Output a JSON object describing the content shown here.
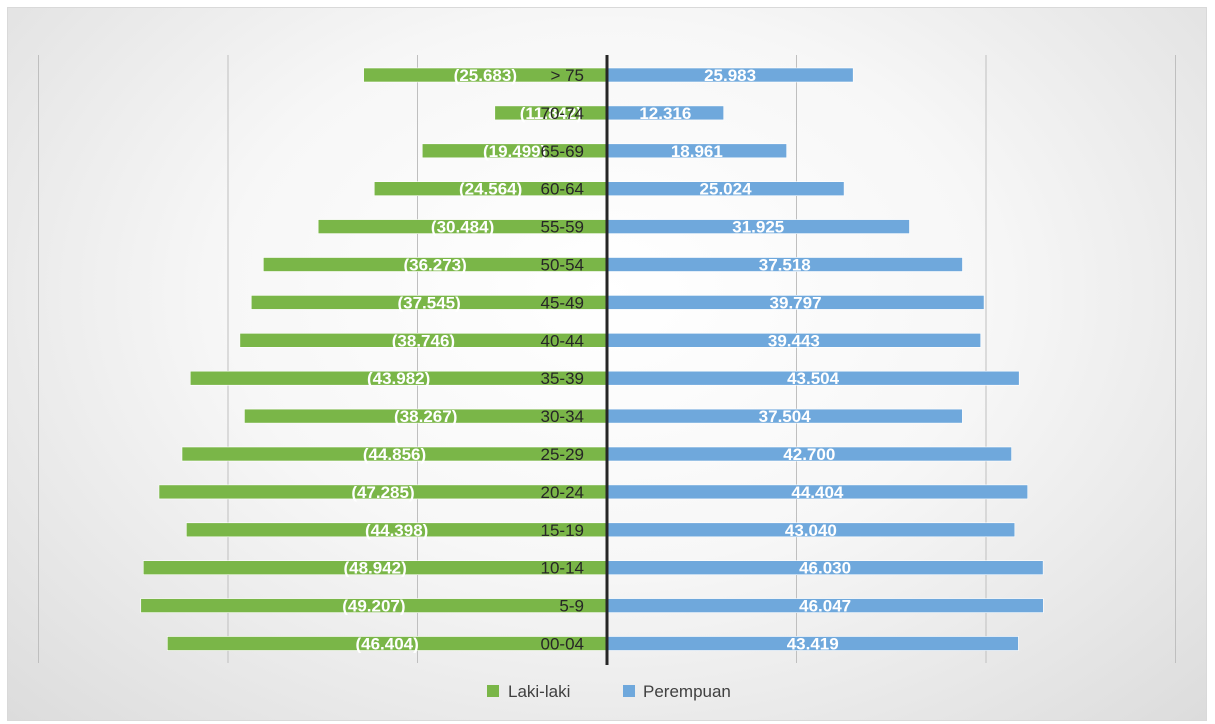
{
  "chart_data": {
    "type": "bar",
    "orientation": "horizontal-population-pyramid",
    "categories": [
      "00-04",
      "5-9",
      "10-14",
      "15-19",
      "20-24",
      "25-29",
      "30-34",
      "35-39",
      "40-44",
      "45-49",
      "50-54",
      "55-59",
      "60-64",
      "65-69",
      "70-74",
      "> 75"
    ],
    "series": [
      {
        "name": "Laki-laki",
        "color": "#7ab648",
        "values": [
          -46404,
          -49207,
          -48942,
          -44398,
          -47285,
          -44856,
          -38267,
          -43982,
          -38746,
          -37545,
          -36273,
          -30484,
          -24564,
          -19499,
          -11842,
          -25683
        ],
        "labels": [
          "(46.404)",
          "(49.207)",
          "(48.942)",
          "(44.398)",
          "(47.285)",
          "(44.856)",
          "(38.267)",
          "(43.982)",
          "(38.746)",
          "(37.545)",
          "(36.273)",
          "(30.484)",
          "(24.564)",
          "(19.499)",
          "(11.842)",
          "(25.683)"
        ]
      },
      {
        "name": "Perempuan",
        "color": "#6fa8dc",
        "values": [
          43419,
          46047,
          46030,
          43040,
          44404,
          42700,
          37504,
          43504,
          39443,
          39797,
          37518,
          31925,
          25024,
          18961,
          12316,
          25983
        ],
        "labels": [
          "43.419",
          "46.047",
          "46.030",
          "43.040",
          "44.404",
          "42.700",
          "37.504",
          "43.504",
          "39.443",
          "39.797",
          "37.518",
          "31.925",
          "25.024",
          "18.961",
          "12.316",
          "25.983"
        ]
      }
    ],
    "xlim": [
      -60000,
      60000
    ],
    "grid": true,
    "legend": "bottom"
  }
}
